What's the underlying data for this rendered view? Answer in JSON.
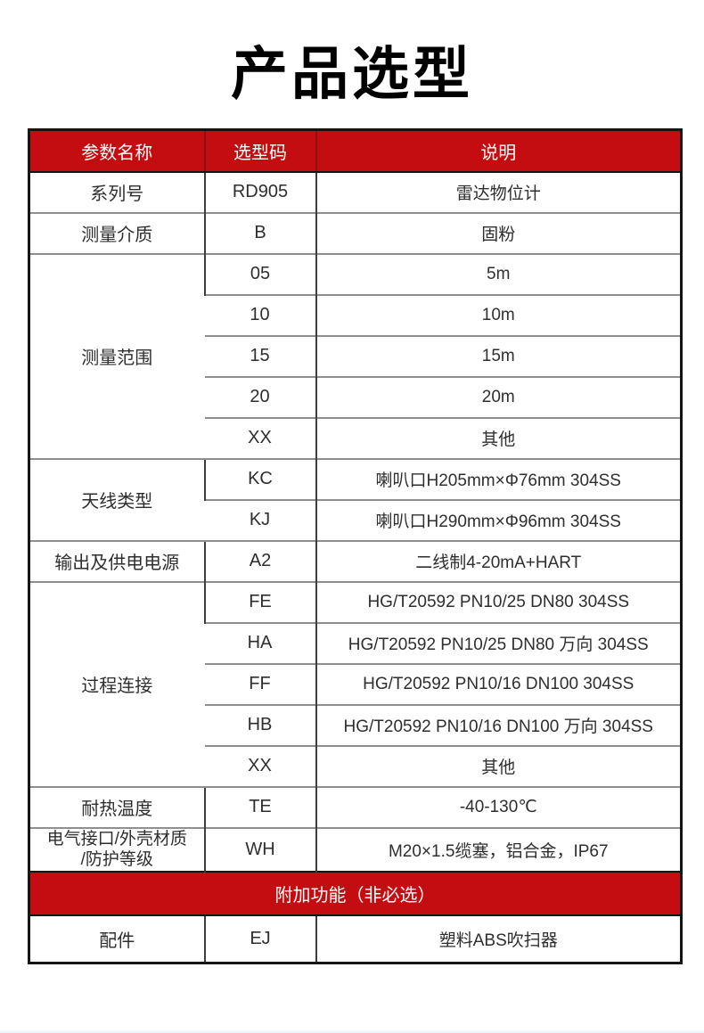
{
  "page": {
    "title": "产品选型"
  },
  "colors": {
    "header_red": "#c30d10",
    "grid_gray": "#8f8f8f",
    "border_dark": "#141414",
    "text_dark": "#2e2e2e"
  },
  "table": {
    "headers": [
      "参数名称",
      "选型码",
      "说明"
    ],
    "groups": [
      {
        "param": "系列号",
        "options": [
          {
            "code": "RD905",
            "desc": "雷达物位计"
          }
        ]
      },
      {
        "param": "测量介质",
        "options": [
          {
            "code": "B",
            "desc": "固粉"
          }
        ]
      },
      {
        "param": "测量范围",
        "options": [
          {
            "code": "05",
            "desc": "5m"
          },
          {
            "code": "10",
            "desc": "10m"
          },
          {
            "code": "15",
            "desc": "15m"
          },
          {
            "code": "20",
            "desc": "20m"
          },
          {
            "code": "XX",
            "desc": "其他"
          }
        ]
      },
      {
        "param": "天线类型",
        "options": [
          {
            "code": "KC",
            "desc": "喇叭口H205mm×Φ76mm 304SS"
          },
          {
            "code": "KJ",
            "desc": "喇叭口H290mm×Φ96mm 304SS"
          }
        ]
      },
      {
        "param": "输出及供电电源",
        "options": [
          {
            "code": "A2",
            "desc": "二线制4-20mA+HART"
          }
        ]
      },
      {
        "param": "过程连接",
        "options": [
          {
            "code": "FE",
            "desc": "HG/T20592 PN10/25 DN80 304SS"
          },
          {
            "code": "HA",
            "desc": "HG/T20592 PN10/25 DN80 万向 304SS"
          },
          {
            "code": "FF",
            "desc": "HG/T20592 PN10/16 DN100 304SS"
          },
          {
            "code": "HB",
            "desc": "HG/T20592 PN10/16 DN100 万向 304SS"
          },
          {
            "code": "XX",
            "desc": "其他"
          }
        ]
      },
      {
        "param": "耐热温度",
        "options": [
          {
            "code": "TE",
            "desc": "-40-130℃"
          }
        ]
      },
      {
        "param": "电气接口/外壳材质/防护等级",
        "param_lines": [
          "电气接口/外壳材质",
          "/防护等级"
        ],
        "options": [
          {
            "code": "WH",
            "desc": "M20×1.5缆塞，铝合金，IP67"
          }
        ]
      }
    ],
    "banner": "附加功能（非必选）",
    "extra_groups": [
      {
        "param": "配件",
        "options": [
          {
            "code": "EJ",
            "desc": "塑料ABS吹扫器"
          }
        ]
      }
    ]
  }
}
